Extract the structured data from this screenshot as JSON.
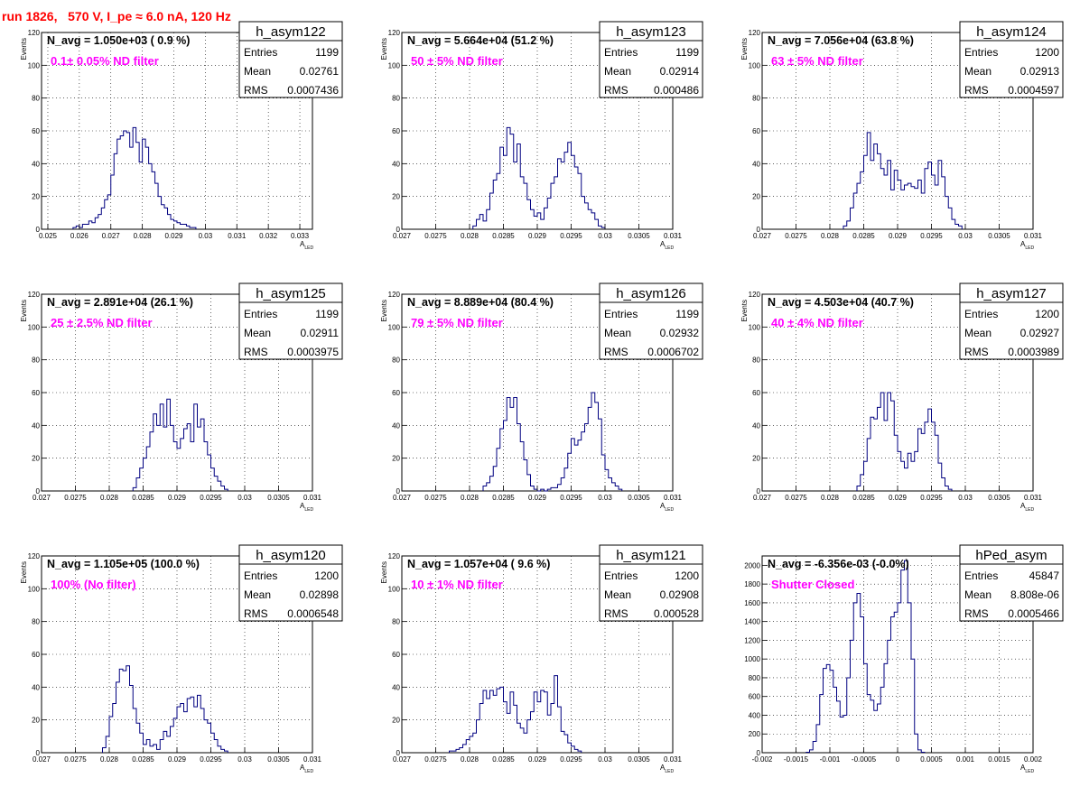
{
  "header": {
    "run_title": "run 1826,   570 V, I_pe ≈ 6.0 nA, 120 Hz"
  },
  "colors": {
    "histogram_line": "#000080",
    "filter_text": "#ff00ff",
    "title_text": "#ff0000",
    "grid": "#000000"
  },
  "chart_data": [
    {
      "type": "bar",
      "name": "h_asym122",
      "n_avg": "N_avg = 1.050e+03 ( 0.9 %)",
      "filter": "0.1± 0.05% ND filter",
      "stats": {
        "entries": "1199",
        "mean": "0.02761",
        "rms": "0.0007436"
      },
      "xlabel": "A",
      "xlabel_sub": "LED",
      "ylabel": "Events",
      "xlim": [
        0.0248,
        0.0334
      ],
      "ylim": [
        0,
        120
      ],
      "xticks": [
        "0.025",
        "0.026",
        "0.027",
        "0.028",
        "0.029",
        "0.03",
        "0.031",
        "0.032",
        "0.033"
      ],
      "xtick_values": [
        0.025,
        0.026,
        0.027,
        0.028,
        0.029,
        0.03,
        0.031,
        0.032,
        0.033
      ],
      "yticks": [
        "0",
        "20",
        "40",
        "60",
        "80",
        "100",
        "120"
      ],
      "ytick_values": [
        0,
        20,
        40,
        60,
        80,
        100,
        120
      ],
      "bin_start": 0.0258,
      "bin_width": 0.0001,
      "counts": [
        1,
        2,
        1,
        3,
        3,
        5,
        4,
        7,
        9,
        13,
        18,
        21,
        33,
        46,
        55,
        57,
        60,
        59,
        50,
        62,
        53,
        41,
        55,
        50,
        40,
        35,
        28,
        20,
        15,
        13,
        9,
        6,
        5,
        4,
        3,
        3,
        2,
        1,
        1
      ]
    },
    {
      "type": "bar",
      "name": "h_asym123",
      "n_avg": "N_avg = 5.664e+04 (51.2 %)",
      "filter": "50 ± 5% ND filter",
      "stats": {
        "entries": "1199",
        "mean": "0.02914",
        "rms": "0.000486"
      },
      "xlabel": "A",
      "xlabel_sub": "LED",
      "ylabel": "Events",
      "xlim": [
        0.027,
        0.031
      ],
      "ylim": [
        0,
        120
      ],
      "xticks": [
        "0.027",
        "0.0275",
        "0.028",
        "0.0285",
        "0.029",
        "0.0295",
        "0.03",
        "0.0305",
        "0.031"
      ],
      "xtick_values": [
        0.027,
        0.0275,
        0.028,
        0.0285,
        0.029,
        0.0295,
        0.03,
        0.0305,
        0.031
      ],
      "yticks": [
        "0",
        "20",
        "40",
        "60",
        "80",
        "100",
        "120"
      ],
      "ytick_values": [
        0,
        20,
        40,
        60,
        80,
        100,
        120
      ],
      "bin_start": 0.02805,
      "bin_width": 5e-05,
      "counts": [
        2,
        6,
        9,
        5,
        12,
        22,
        30,
        34,
        50,
        45,
        62,
        58,
        41,
        52,
        32,
        28,
        18,
        12,
        8,
        10,
        6,
        13,
        19,
        28,
        32,
        43,
        41,
        47,
        53,
        45,
        38,
        34,
        20,
        16,
        12,
        10,
        6,
        2,
        1
      ]
    },
    {
      "type": "bar",
      "name": "h_asym124",
      "n_avg": "N_avg = 7.056e+04 (63.8 %)",
      "filter": "63 ± 5% ND filter",
      "stats": {
        "entries": "1200",
        "mean": "0.02913",
        "rms": "0.0004597"
      },
      "xlabel": "A",
      "xlabel_sub": "LED",
      "ylabel": "Events",
      "xlim": [
        0.027,
        0.031
      ],
      "ylim": [
        0,
        120
      ],
      "xticks": [
        "0.027",
        "0.0275",
        "0.028",
        "0.0285",
        "0.029",
        "0.0295",
        "0.03",
        "0.0305",
        "0.031"
      ],
      "xtick_values": [
        0.027,
        0.0275,
        0.028,
        0.0285,
        0.029,
        0.0295,
        0.03,
        0.0305,
        0.031
      ],
      "yticks": [
        "0",
        "20",
        "40",
        "60",
        "80",
        "100",
        "120"
      ],
      "ytick_values": [
        0,
        20,
        40,
        60,
        80,
        100,
        120
      ],
      "bin_start": 0.0282,
      "bin_width": 5e-05,
      "counts": [
        2,
        5,
        13,
        22,
        28,
        35,
        45,
        59,
        42,
        52,
        46,
        37,
        33,
        42,
        24,
        36,
        30,
        24,
        27,
        28,
        26,
        25,
        30,
        22,
        37,
        41,
        33,
        27,
        42,
        32,
        20,
        13,
        6,
        3,
        2
      ]
    },
    {
      "type": "bar",
      "name": "h_asym125",
      "n_avg": "N_avg = 2.891e+04 (26.1 %)",
      "filter": "25 ± 2.5% ND filter",
      "stats": {
        "entries": "1199",
        "mean": "0.02911",
        "rms": "0.0003975"
      },
      "xlabel": "A",
      "xlabel_sub": "LED",
      "ylabel": "Events",
      "xlim": [
        0.027,
        0.031
      ],
      "ylim": [
        0,
        120
      ],
      "xticks": [
        "0.027",
        "0.0275",
        "0.028",
        "0.0285",
        "0.029",
        "0.0295",
        "0.03",
        "0.0305",
        "0.031"
      ],
      "xtick_values": [
        0.027,
        0.0275,
        0.028,
        0.0285,
        0.029,
        0.0295,
        0.03,
        0.0305,
        0.031
      ],
      "yticks": [
        "0",
        "20",
        "40",
        "60",
        "80",
        "100",
        "120"
      ],
      "ytick_values": [
        0,
        20,
        40,
        60,
        80,
        100,
        120
      ],
      "bin_start": 0.02835,
      "bin_width": 5e-05,
      "counts": [
        2,
        8,
        14,
        20,
        27,
        36,
        47,
        40,
        53,
        39,
        56,
        40,
        30,
        26,
        32,
        38,
        41,
        30,
        53,
        39,
        44,
        30,
        22,
        14,
        9,
        6,
        3,
        1
      ]
    },
    {
      "type": "bar",
      "name": "h_asym126",
      "n_avg": "N_avg = 8.889e+04 (80.4 %)",
      "filter": "79 ± 5% ND filter",
      "stats": {
        "entries": "1199",
        "mean": "0.02932",
        "rms": "0.0006702"
      },
      "xlabel": "A",
      "xlabel_sub": "LED",
      "ylabel": "Events",
      "xlim": [
        0.027,
        0.031
      ],
      "ylim": [
        0,
        120
      ],
      "xticks": [
        "0.027",
        "0.0275",
        "0.028",
        "0.0285",
        "0.029",
        "0.0295",
        "0.03",
        "0.0305",
        "0.031"
      ],
      "xtick_values": [
        0.027,
        0.0275,
        0.028,
        0.0285,
        0.029,
        0.0295,
        0.03,
        0.0305,
        0.031
      ],
      "yticks": [
        "0",
        "20",
        "40",
        "60",
        "80",
        "100",
        "120"
      ],
      "ytick_values": [
        0,
        20,
        40,
        60,
        80,
        100,
        120
      ],
      "bin_start": 0.0282,
      "bin_width": 5e-05,
      "counts": [
        3,
        5,
        9,
        15,
        26,
        38,
        43,
        57,
        51,
        57,
        41,
        30,
        19,
        10,
        3,
        1,
        0,
        1,
        0,
        1,
        2,
        2,
        4,
        8,
        14,
        23,
        32,
        28,
        31,
        36,
        41,
        51,
        60,
        54,
        44,
        22,
        13,
        8,
        5,
        3,
        1
      ]
    },
    {
      "type": "bar",
      "name": "h_asym127",
      "n_avg": "N_avg = 4.503e+04 (40.7 %)",
      "filter": "40 ± 4% ND filter",
      "stats": {
        "entries": "1200",
        "mean": "0.02927",
        "rms": "0.0003989"
      },
      "xlabel": "A",
      "xlabel_sub": "LED",
      "ylabel": "Events",
      "xlim": [
        0.027,
        0.031
      ],
      "ylim": [
        0,
        120
      ],
      "xticks": [
        "0.027",
        "0.0275",
        "0.028",
        "0.0285",
        "0.029",
        "0.0295",
        "0.03",
        "0.0305",
        "0.031"
      ],
      "xtick_values": [
        0.027,
        0.0275,
        0.028,
        0.0285,
        0.029,
        0.0295,
        0.03,
        0.0305,
        0.031
      ],
      "yticks": [
        "0",
        "20",
        "40",
        "60",
        "80",
        "100",
        "120"
      ],
      "ytick_values": [
        0,
        20,
        40,
        60,
        80,
        100,
        120
      ],
      "bin_start": 0.0284,
      "bin_width": 5e-05,
      "counts": [
        3,
        10,
        18,
        32,
        45,
        44,
        51,
        60,
        43,
        60,
        55,
        34,
        24,
        18,
        14,
        23,
        18,
        24,
        38,
        35,
        42,
        50,
        42,
        34,
        17,
        8,
        3,
        1
      ]
    },
    {
      "type": "bar",
      "name": "h_asym120",
      "n_avg": "N_avg = 1.105e+05 (100.0 %)",
      "filter": "100% (No filter)",
      "stats": {
        "entries": "1200",
        "mean": "0.02898",
        "rms": "0.0006548"
      },
      "xlabel": "A",
      "xlabel_sub": "LED",
      "ylabel": "Events",
      "xlim": [
        0.027,
        0.031
      ],
      "ylim": [
        0,
        120
      ],
      "xticks": [
        "0.027",
        "0.0275",
        "0.028",
        "0.0285",
        "0.029",
        "0.0295",
        "0.03",
        "0.0305",
        "0.031"
      ],
      "xtick_values": [
        0.027,
        0.0275,
        0.028,
        0.0285,
        0.029,
        0.0295,
        0.03,
        0.0305,
        0.031
      ],
      "yticks": [
        "0",
        "20",
        "40",
        "60",
        "80",
        "100",
        "120"
      ],
      "ytick_values": [
        0,
        20,
        40,
        60,
        80,
        100,
        120
      ],
      "bin_start": 0.0279,
      "bin_width": 5e-05,
      "counts": [
        3,
        10,
        22,
        30,
        43,
        51,
        50,
        53,
        41,
        27,
        18,
        12,
        5,
        8,
        4,
        5,
        2,
        8,
        13,
        10,
        16,
        21,
        28,
        30,
        25,
        33,
        34,
        28,
        35,
        27,
        20,
        18,
        12,
        8,
        4,
        2,
        1
      ]
    },
    {
      "type": "bar",
      "name": "h_asym121",
      "n_avg": "N_avg = 1.057e+04 ( 9.6 %)",
      "filter": "10 ± 1% ND filter",
      "stats": {
        "entries": "1200",
        "mean": "0.02908",
        "rms": "0.000528"
      },
      "xlabel": "A",
      "xlabel_sub": "LED",
      "ylabel": "Events",
      "xlim": [
        0.027,
        0.031
      ],
      "ylim": [
        0,
        120
      ],
      "xticks": [
        "0.027",
        "0.0275",
        "0.028",
        "0.0285",
        "0.029",
        "0.0295",
        "0.03",
        "0.0305",
        "0.031"
      ],
      "xtick_values": [
        0.027,
        0.0275,
        0.028,
        0.0285,
        0.029,
        0.0295,
        0.03,
        0.0305,
        0.031
      ],
      "yticks": [
        "0",
        "20",
        "40",
        "60",
        "80",
        "100",
        "120"
      ],
      "ytick_values": [
        0,
        20,
        40,
        60,
        80,
        100,
        120
      ],
      "bin_start": 0.0277,
      "bin_width": 5e-05,
      "counts": [
        1,
        1,
        2,
        3,
        5,
        8,
        10,
        12,
        20,
        30,
        38,
        33,
        38,
        35,
        39,
        40,
        31,
        24,
        37,
        29,
        18,
        15,
        12,
        20,
        25,
        37,
        31,
        38,
        37,
        23,
        30,
        47,
        28,
        13,
        11,
        6,
        4,
        2,
        1
      ]
    },
    {
      "type": "bar",
      "name": "hPed_asym",
      "n_avg": "N_avg = -6.356e-03 (-0.0%)",
      "filter": "Shutter Closed",
      "stats": {
        "entries": "45847",
        "mean": "8.808e-06",
        "rms": "0.0005466"
      },
      "xlabel": "A",
      "xlabel_sub": "LED",
      "ylabel": "",
      "xlim": [
        -0.002,
        0.002
      ],
      "ylim": [
        0,
        2100
      ],
      "xticks": [
        "-0.002",
        "-0.0015",
        "-0.001",
        "-0.0005",
        "0",
        "0.0005",
        "0.001",
        "0.0015",
        "0.002"
      ],
      "xtick_values": [
        -0.002,
        -0.0015,
        -0.001,
        -0.0005,
        0,
        0.0005,
        0.001,
        0.0015,
        0.002
      ],
      "yticks": [
        "0",
        "200",
        "400",
        "600",
        "800",
        "1000",
        "1200",
        "1400",
        "1600",
        "1800",
        "2000"
      ],
      "ytick_values": [
        0,
        200,
        400,
        600,
        800,
        1000,
        1200,
        1400,
        1600,
        1800,
        2000
      ],
      "bin_start": -0.00135,
      "bin_width": 5e-05,
      "counts": [
        5,
        30,
        120,
        300,
        620,
        900,
        940,
        880,
        700,
        550,
        380,
        400,
        800,
        1200,
        1600,
        1700,
        1450,
        950,
        620,
        560,
        450,
        520,
        700,
        950,
        1200,
        1450,
        1500,
        1600,
        1950,
        2050,
        1600,
        1000,
        200,
        30,
        5
      ]
    }
  ]
}
